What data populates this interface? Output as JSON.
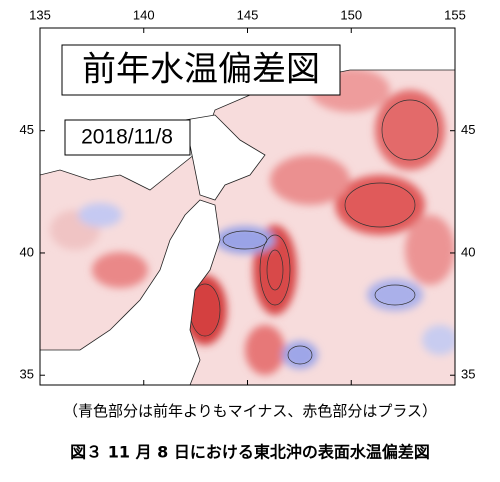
{
  "map": {
    "title": "前年水温偏差図",
    "date": "2018/11/8",
    "xlim": [
      135,
      155
    ],
    "ylim": [
      34.6,
      49.2
    ],
    "xticks": [
      135,
      140,
      145,
      150,
      155
    ],
    "yticks": [
      45,
      40,
      35
    ]
  },
  "caption": "（青色部分は前年よりもマイナス、赤色部分はプラス）",
  "figure_caption": "図３ 11 月 8 日における東北沖の表面水温偏差図"
}
